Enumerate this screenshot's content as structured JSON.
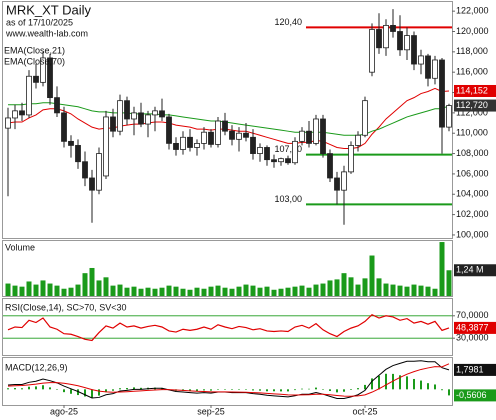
{
  "chart_data": [
    {
      "type": "candlestick",
      "title": "MRK_XT Daily",
      "subtitle": "as of 17/10/2025",
      "watermark": "www.wealth-lab.com",
      "categories": [
        null,
        null,
        null,
        null,
        null,
        null,
        null,
        null,
        "ago-25",
        null,
        null,
        null,
        null,
        null,
        null,
        null,
        null,
        null,
        null,
        null,
        null,
        null,
        null,
        null,
        null,
        null,
        null,
        null,
        null,
        "sep-25",
        null,
        null,
        null,
        null,
        null,
        null,
        null,
        null,
        null,
        null,
        null,
        null,
        null,
        null,
        null,
        null,
        null,
        null,
        null,
        null,
        null,
        "oct-25",
        null,
        null,
        null,
        null,
        null,
        null,
        null,
        null,
        null,
        null,
        null,
        null
      ],
      "open": [
        110.5,
        111.5,
        112.2,
        111.8,
        115.6,
        115.0,
        117.4,
        113.5,
        112.0,
        109.2,
        108.8,
        107.2,
        105.6,
        104.4,
        105.8,
        111.6,
        110.2,
        113.2,
        111.4,
        112.0,
        110.9,
        111.8,
        112.2,
        111.6,
        109.0,
        108.4,
        109.6,
        108.6,
        109.0,
        110.1,
        108.9,
        111.2,
        110.2,
        109.4,
        110.0,
        109.6,
        108.0,
        108.6,
        107.4,
        107.2,
        107.5,
        107.1,
        109.2,
        110.2,
        109.0,
        111.4,
        108.0,
        105.6,
        104.4,
        106.2,
        108.8,
        109.8,
        116.0,
        120.2,
        118.4,
        120.6,
        120.0,
        118.2,
        119.6,
        116.8,
        117.6,
        115.4,
        117.2,
        110.6
      ],
      "high": [
        112.5,
        112.8,
        113.0,
        116.2,
        116.8,
        118.0,
        117.8,
        114.6,
        112.6,
        109.8,
        109.4,
        108.2,
        106.4,
        108.6,
        112.2,
        112.4,
        113.8,
        113.6,
        112.6,
        113.0,
        112.2,
        112.6,
        113.4,
        111.9,
        109.6,
        110.2,
        110.4,
        109.4,
        110.6,
        110.4,
        111.6,
        112.0,
        110.8,
        110.6,
        111.0,
        110.4,
        109.0,
        108.8,
        107.9,
        107.6,
        107.8,
        109.6,
        110.6,
        111.2,
        111.8,
        111.8,
        108.4,
        106.2,
        106.8,
        109.2,
        110.2,
        113.6,
        120.8,
        121.8,
        121.2,
        122.2,
        121.6,
        120.4,
        120.0,
        118.2,
        117.8,
        117.6,
        117.4,
        112.9
      ],
      "low": [
        103.8,
        110.4,
        111.2,
        111.5,
        114.4,
        114.6,
        112.8,
        111.6,
        108.6,
        107.6,
        106.5,
        104.8,
        101.2,
        104.0,
        105.5,
        109.6,
        109.8,
        110.8,
        109.8,
        110.6,
        109.6,
        110.2,
        111.2,
        108.4,
        107.8,
        107.9,
        108.2,
        107.8,
        108.4,
        108.6,
        108.6,
        109.8,
        108.8,
        108.2,
        109.2,
        107.4,
        107.2,
        106.8,
        106.6,
        106.8,
        106.9,
        106.9,
        108.8,
        108.6,
        108.8,
        107.6,
        105.2,
        103.0,
        101.0,
        106.0,
        108.2,
        109.6,
        115.6,
        117.8,
        117.6,
        119.4,
        117.6,
        117.2,
        116.2,
        115.8,
        114.6,
        114.8,
        108.0,
        110.2
      ],
      "close": [
        111.5,
        112.2,
        111.8,
        115.6,
        115.0,
        117.4,
        113.5,
        112.0,
        109.2,
        108.8,
        107.2,
        105.6,
        104.4,
        108.0,
        111.6,
        110.2,
        113.2,
        111.4,
        112.0,
        110.9,
        111.8,
        112.2,
        111.6,
        109.0,
        108.4,
        109.6,
        108.6,
        109.0,
        110.1,
        108.9,
        111.2,
        110.2,
        109.4,
        110.0,
        109.6,
        108.0,
        108.6,
        107.4,
        107.2,
        107.5,
        107.1,
        109.2,
        110.2,
        109.0,
        111.4,
        108.0,
        105.6,
        104.4,
        106.2,
        108.8,
        109.8,
        113.2,
        120.2,
        118.4,
        120.6,
        120.0,
        118.2,
        119.6,
        116.8,
        117.6,
        115.4,
        117.2,
        110.6,
        112.72
      ],
      "series": [
        {
          "name": "EMA(Close,21)",
          "color": "#e00000",
          "values": [
            111.0,
            111.1,
            111.1,
            111.5,
            111.8,
            112.3,
            112.4,
            112.4,
            112.2,
            111.9,
            111.4,
            111.0,
            110.6,
            110.4,
            110.5,
            110.5,
            110.7,
            110.8,
            110.9,
            110.9,
            111.0,
            111.1,
            111.1,
            111.0,
            110.8,
            110.7,
            110.6,
            110.4,
            110.4,
            110.3,
            110.4,
            110.4,
            110.3,
            110.2,
            110.2,
            110.0,
            109.8,
            109.6,
            109.4,
            109.2,
            109.0,
            109.0,
            109.1,
            109.1,
            109.3,
            109.2,
            108.9,
            108.6,
            108.5,
            108.5,
            108.6,
            109.0,
            109.9,
            110.6,
            111.4,
            112.0,
            112.6,
            113.2,
            113.5,
            113.9,
            114.1,
            114.4,
            114.1,
            114.152
          ]
        },
        {
          "name": "EMA(Close,70)",
          "color": "#1a9a1a",
          "values": [
            112.8,
            112.8,
            112.8,
            112.9,
            112.9,
            113.0,
            113.0,
            112.9,
            112.8,
            112.7,
            112.6,
            112.4,
            112.2,
            112.1,
            112.1,
            112.0,
            112.0,
            112.0,
            111.9,
            111.9,
            111.9,
            111.9,
            111.8,
            111.8,
            111.7,
            111.6,
            111.5,
            111.4,
            111.3,
            111.2,
            111.2,
            111.1,
            111.0,
            110.9,
            110.8,
            110.7,
            110.6,
            110.5,
            110.4,
            110.3,
            110.2,
            110.1,
            110.1,
            110.1,
            110.1,
            110.1,
            110.0,
            109.9,
            109.8,
            109.8,
            109.8,
            109.9,
            110.2,
            110.4,
            110.7,
            111.0,
            111.3,
            111.6,
            111.8,
            112.0,
            112.2,
            112.4,
            112.4,
            112.72
          ]
        }
      ],
      "ylim": [
        99.7,
        122.9
      ],
      "yticks": [
        {
          "value": 100,
          "label": "100,000"
        },
        {
          "value": 102,
          "label": "102,000"
        },
        {
          "value": 104,
          "label": "104,000"
        },
        {
          "value": 106,
          "label": "106,000"
        },
        {
          "value": 108,
          "label": "108,000"
        },
        {
          "value": 110,
          "label": "110,000"
        },
        {
          "value": 112,
          "label": "112,000"
        },
        {
          "value": 114,
          "label": "114,000"
        },
        {
          "value": 116,
          "label": "116,000"
        },
        {
          "value": 118,
          "label": "118,000"
        },
        {
          "value": 120,
          "label": "120,000"
        },
        {
          "value": 122,
          "label": "122,000"
        }
      ],
      "levels": [
        {
          "value": 120.4,
          "label": "120,40",
          "color": "#e00000"
        },
        {
          "value": 107.9,
          "label": "107,90",
          "color": "#1a9a1a"
        },
        {
          "value": 103.0,
          "label": "103,00",
          "color": "#1a9a1a"
        }
      ],
      "last_labels": [
        {
          "value": 114.152,
          "label": "114,152",
          "color": "#e00000"
        },
        {
          "value": 112.72,
          "label": "112,720",
          "color": "#333333"
        }
      ]
    },
    {
      "type": "bar",
      "title": "Volume",
      "color": "#1a9a1a",
      "values": [
        0.6,
        0.5,
        0.45,
        0.7,
        0.55,
        0.75,
        0.6,
        0.5,
        0.35,
        0.4,
        0.55,
        1.1,
        1.35,
        0.75,
        0.9,
        0.5,
        0.55,
        0.4,
        0.45,
        0.35,
        0.4,
        0.35,
        0.4,
        0.5,
        0.45,
        0.35,
        0.3,
        0.4,
        0.35,
        0.45,
        0.5,
        0.4,
        0.35,
        0.45,
        0.55,
        0.5,
        0.4,
        0.45,
        0.3,
        0.35,
        0.4,
        0.45,
        0.5,
        0.4,
        0.55,
        0.6,
        0.75,
        0.8,
        1.1,
        0.9,
        0.55,
        0.85,
        1.95,
        0.85,
        0.6,
        0.55,
        0.5,
        0.45,
        0.55,
        0.5,
        0.45,
        0.35,
        2.6,
        1.24
      ],
      "ylim": [
        0,
        2.65
      ],
      "last_labels": [
        {
          "value": 1.24,
          "label": "1,24 M",
          "color": "#222222"
        }
      ]
    },
    {
      "type": "line",
      "title": "RSI(Close,14), SC>70, SV<30",
      "color": "#e00000",
      "values": [
        45,
        50,
        49,
        62,
        58,
        66,
        50,
        46,
        38,
        37,
        33,
        28,
        26,
        40,
        52,
        48,
        57,
        50,
        52,
        48,
        51,
        53,
        50,
        43,
        41,
        46,
        44,
        46,
        50,
        46,
        54,
        50,
        47,
        51,
        49,
        45,
        47,
        43,
        42,
        43,
        42,
        50,
        53,
        48,
        56,
        45,
        38,
        33,
        42,
        48,
        52,
        60,
        72,
        66,
        70,
        68,
        62,
        65,
        57,
        60,
        55,
        60,
        44,
        48.3877
      ],
      "ylim": [
        0,
        100
      ],
      "yticks": [
        {
          "value": 70,
          "label": "70,0000"
        },
        {
          "value": 30,
          "label": "30,0000"
        }
      ],
      "last_labels": [
        {
          "value": 48.3877,
          "label": "48,3877",
          "color": "#e00000"
        }
      ]
    },
    {
      "type": "macd",
      "title": "MACD(12,26,9)",
      "series": [
        {
          "color": "#000000",
          "values": [
            0.4,
            0.45,
            0.45,
            0.65,
            0.75,
            0.95,
            0.8,
            0.6,
            0.3,
            0.05,
            -0.2,
            -0.5,
            -0.8,
            -0.75,
            -0.5,
            -0.4,
            -0.15,
            -0.1,
            0.0,
            0.0,
            0.05,
            0.1,
            0.1,
            -0.05,
            -0.2,
            -0.25,
            -0.3,
            -0.35,
            -0.3,
            -0.35,
            -0.25,
            -0.25,
            -0.3,
            -0.3,
            -0.3,
            -0.4,
            -0.45,
            -0.55,
            -0.6,
            -0.65,
            -0.7,
            -0.6,
            -0.45,
            -0.45,
            -0.3,
            -0.45,
            -0.65,
            -0.85,
            -0.85,
            -0.7,
            -0.5,
            -0.1,
            0.75,
            1.3,
            1.85,
            2.2,
            2.4,
            2.6,
            2.6,
            2.65,
            2.55,
            2.55,
            2.0,
            1.7981
          ]
        },
        {
          "color": "#e00000",
          "values": [
            0.3,
            0.33,
            0.35,
            0.41,
            0.48,
            0.57,
            0.62,
            0.62,
            0.56,
            0.46,
            0.33,
            0.16,
            -0.03,
            -0.17,
            -0.24,
            -0.27,
            -0.25,
            -0.22,
            -0.18,
            -0.14,
            -0.1,
            -0.06,
            -0.03,
            -0.03,
            -0.06,
            -0.1,
            -0.14,
            -0.18,
            -0.2,
            -0.23,
            -0.23,
            -0.24,
            -0.25,
            -0.26,
            -0.27,
            -0.3,
            -0.33,
            -0.37,
            -0.42,
            -0.46,
            -0.51,
            -0.53,
            -0.51,
            -0.5,
            -0.46,
            -0.46,
            -0.5,
            -0.57,
            -0.63,
            -0.64,
            -0.61,
            -0.51,
            -0.26,
            0.05,
            0.41,
            0.77,
            1.1,
            1.4,
            1.64,
            1.84,
            1.98,
            2.1,
            2.08,
            2.3587
          ]
        }
      ],
      "histogram": {
        "color": "#1a9a1a",
        "values": [
          0.1,
          0.12,
          0.1,
          0.24,
          0.27,
          0.38,
          0.18,
          -0.02,
          -0.26,
          -0.41,
          -0.53,
          -0.66,
          -0.77,
          -0.58,
          -0.26,
          -0.13,
          0.1,
          0.12,
          0.18,
          0.14,
          0.15,
          0.16,
          0.13,
          -0.02,
          -0.14,
          -0.15,
          -0.16,
          -0.17,
          -0.1,
          -0.12,
          -0.02,
          -0.01,
          -0.05,
          -0.04,
          -0.03,
          -0.1,
          -0.12,
          -0.18,
          -0.18,
          -0.19,
          -0.19,
          -0.07,
          0.06,
          0.05,
          0.16,
          0.01,
          -0.15,
          -0.28,
          -0.22,
          -0.06,
          0.11,
          0.41,
          1.01,
          1.25,
          1.44,
          1.43,
          1.3,
          1.2,
          0.96,
          0.81,
          0.57,
          0.45,
          -0.08,
          -0.5606
        ]
      },
      "ylim": [
        -1.45,
        2.9
      ],
      "last_labels": [
        {
          "value": 1.7981,
          "label": "1,7981",
          "color": "#111111"
        },
        {
          "value": -0.5606,
          "label": "-0,5606",
          "color": "#1a9a1a"
        }
      ]
    }
  ]
}
